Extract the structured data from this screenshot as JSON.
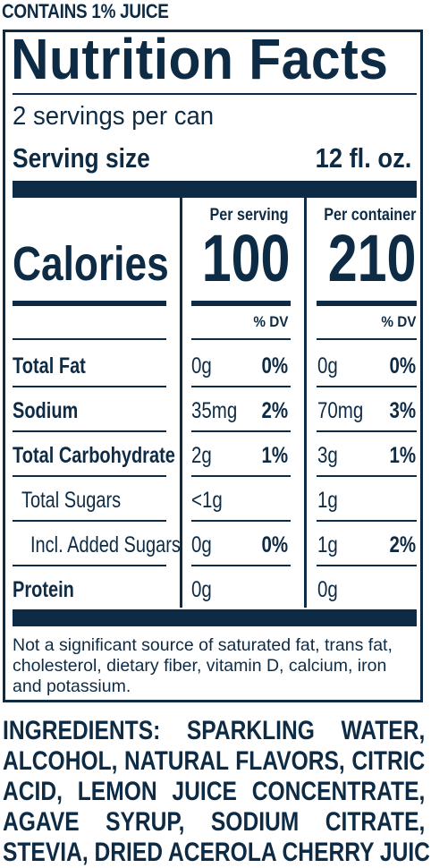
{
  "claim": "CONTAINS 1% JUICE",
  "label": {
    "title": "Nutrition Facts",
    "servings_per_container": "2 servings per can",
    "serving_size_label": "Serving size",
    "serving_size_value": "12 fl. oz.",
    "per_serving_header": "Per serving",
    "per_container_header": "Per container",
    "calories_label": "Calories",
    "calories_per_serving": "100",
    "calories_per_container": "210",
    "dv_header_serving": "% DV",
    "dv_header_container": "% DV",
    "rows": [
      {
        "label": "Total Fat",
        "serving_amount": "0g",
        "serving_dv": "0%",
        "container_amount": "0g",
        "container_dv": "0%"
      },
      {
        "label": "Sodium",
        "serving_amount": "35mg",
        "serving_dv": "2%",
        "container_amount": "70mg",
        "container_dv": "3%"
      },
      {
        "label": "Total Carbohydrate",
        "serving_amount": "2g",
        "serving_dv": "1%",
        "container_amount": "3g",
        "container_dv": "1%"
      },
      {
        "label": "Total Sugars",
        "serving_amount": "<1g",
        "serving_dv": "",
        "container_amount": "1g",
        "container_dv": ""
      },
      {
        "label": "Incl. Added Sugars",
        "serving_amount": "0g",
        "serving_dv": "0%",
        "container_amount": "1g",
        "container_dv": "2%"
      },
      {
        "label": "Protein",
        "serving_amount": "0g",
        "serving_dv": "",
        "container_amount": "0g",
        "container_dv": ""
      }
    ],
    "footnote": "Not a significant source of saturated fat, trans fat, cholesterol, dietary fiber, vitamin D, calcium, iron and potassium."
  },
  "ingredients": {
    "lines": [
      "INGREDIENTS: SPARKLING WATER,",
      "ALCOHOL, NATURAL FLAVORS, CITRIC",
      "ACID, LEMON JUICE CONCENTRATE,",
      "AGAVE SYRUP, SODIUM CITRATE,",
      "STEVIA, DRIED ACEROLA CHERRY JUICE."
    ]
  }
}
